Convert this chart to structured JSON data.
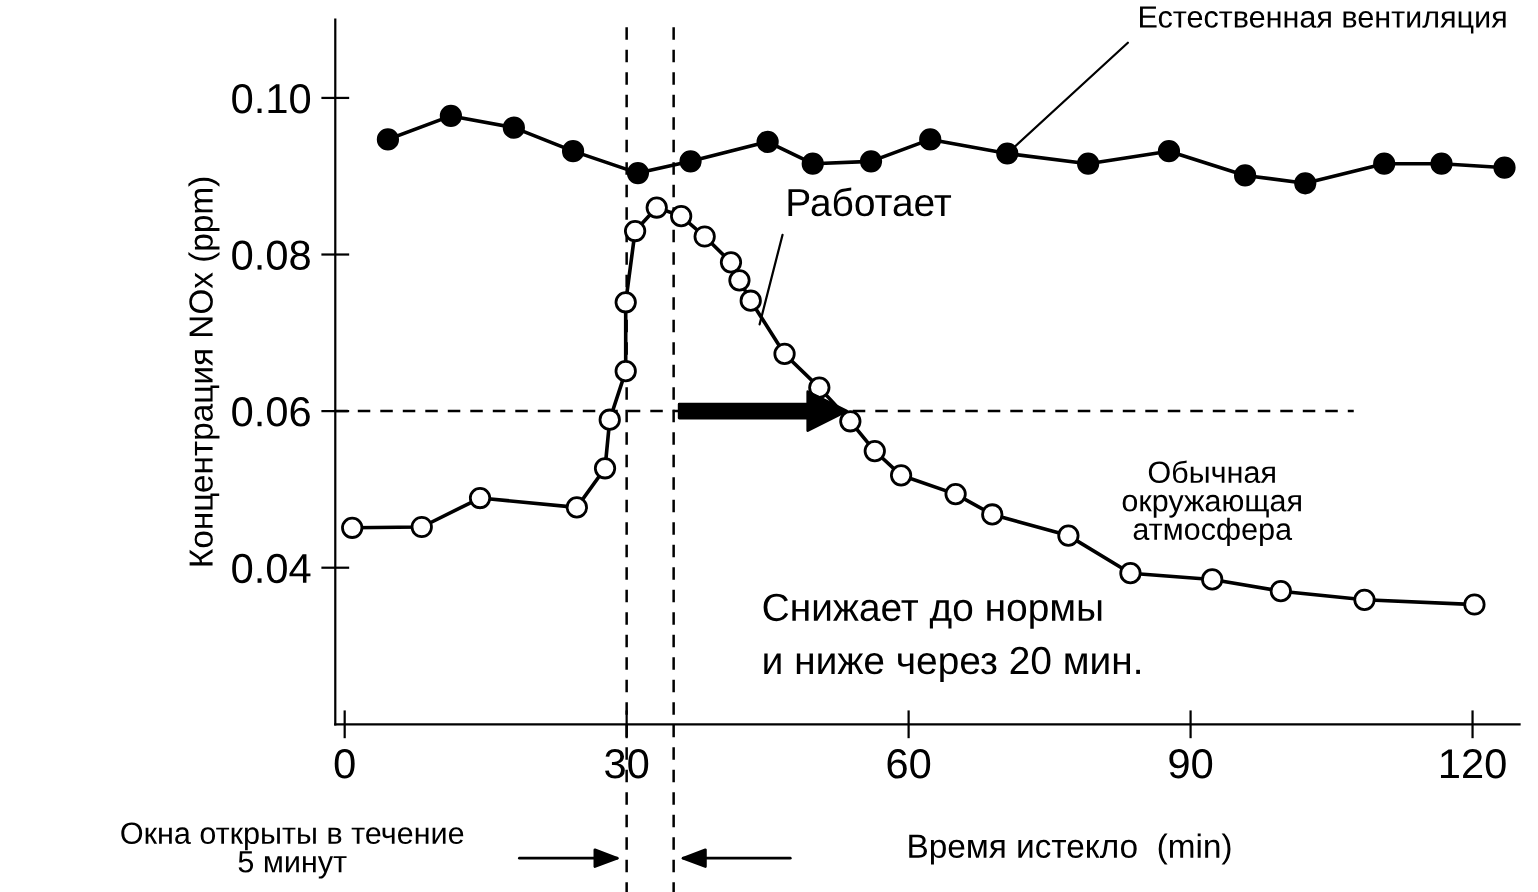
{
  "chart_data": {
    "type": "line",
    "xlabel": "Время истекло  (min)",
    "ylabel": "Концентрация NOx (ppm)",
    "xlim": [
      -1,
      125
    ],
    "ylim": [
      0.02,
      0.11
    ],
    "xticks": [
      0,
      30,
      60,
      90,
      120
    ],
    "yticks": [
      {
        "value": 0.04,
        "label": "0.04"
      },
      {
        "value": 0.06,
        "label": "0.06"
      },
      {
        "value": 0.08,
        "label": "0.08"
      },
      {
        "value": 0.1,
        "label": "0.10"
      }
    ],
    "grid": false,
    "marker": "circle",
    "line_style": "solid",
    "series": [
      {
        "name": "Естественная вентиляция",
        "color": "#000000",
        "x": [
          4.6,
          11.3,
          18.0,
          24.3,
          31.2,
          36.8,
          45.0,
          49.8,
          56.0,
          62.3,
          70.5,
          79.1,
          87.7,
          95.8,
          102.2,
          110.6,
          116.7,
          123.4
        ],
        "values": [
          0.0947,
          0.0977,
          0.0962,
          0.0932,
          0.0904,
          0.0919,
          0.0944,
          0.0916,
          0.0919,
          0.0947,
          0.0929,
          0.0916,
          0.0932,
          0.0901,
          0.0891,
          0.0916,
          0.0916,
          0.0911
        ]
      },
      {
        "name": "Обычная окружающая атмосфера",
        "color": "#ffffff",
        "x": [
          0.8,
          8.2,
          14.4,
          24.7,
          27.7,
          28.2,
          29.9,
          29.9,
          30.9,
          33.2,
          35.8,
          38.3,
          41.1,
          42.0,
          43.2,
          46.8,
          50.5,
          53.8,
          56.4,
          59.2,
          65.0,
          68.9,
          77.0,
          83.6,
          92.3,
          99.6,
          108.5,
          120.2
        ],
        "values": [
          0.0451,
          0.0452,
          0.0489,
          0.0477,
          0.0527,
          0.0589,
          0.0651,
          0.0739,
          0.083,
          0.086,
          0.0849,
          0.0823,
          0.079,
          0.0767,
          0.0741,
          0.0673,
          0.063,
          0.0587,
          0.0549,
          0.0518,
          0.0494,
          0.0468,
          0.0441,
          0.0393,
          0.0385,
          0.037,
          0.0359,
          0.0353
        ]
      }
    ],
    "ref_lines": [
      {
        "axis": "x",
        "value": 30,
        "line_style": "dashed"
      },
      {
        "axis": "x",
        "value": 35,
        "line_style": "dashed"
      },
      {
        "axis": "y",
        "value": 0.06,
        "line_style": "dashed"
      }
    ],
    "annotations": [
      {
        "text": "Работает",
        "x": 44,
        "y": 0.0704
      },
      "Снижает до нормы\nи ниже через 20 мин.",
      "Окна открыты в течение\n5 минут"
    ]
  }
}
